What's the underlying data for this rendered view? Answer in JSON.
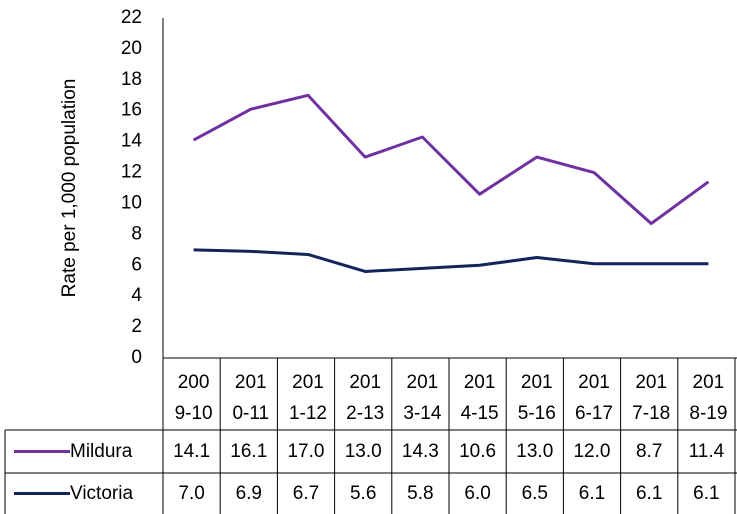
{
  "chart_data": {
    "type": "line",
    "y_label": "Rate per 1,000 population",
    "categories": [
      "2009-10",
      "2010-11",
      "2011-12",
      "2012-13",
      "2013-14",
      "2014-15",
      "2015-16",
      "2016-17",
      "2017-18",
      "2018-19"
    ],
    "series": [
      {
        "name": "Mildura",
        "color": "#7030a0",
        "values": [
          14.1,
          16.1,
          17.0,
          13.0,
          14.3,
          10.6,
          13.0,
          12.0,
          8.7,
          11.4
        ],
        "value_labels": [
          "14.1",
          "16.1",
          "17.0",
          "13.0",
          "14.3",
          "10.6",
          "13.0",
          "12.0",
          "8.7",
          "11.4"
        ]
      },
      {
        "name": "Victoria",
        "color": "#13235b",
        "values": [
          7.0,
          6.9,
          6.7,
          5.6,
          5.8,
          6.0,
          6.5,
          6.1,
          6.1,
          6.1
        ],
        "value_labels": [
          "7.0",
          "6.9",
          "6.7",
          "5.6",
          "5.8",
          "6.0",
          "6.5",
          "6.1",
          "6.1",
          "6.1"
        ]
      }
    ],
    "ylim": [
      0,
      22
    ],
    "yticks": [
      0,
      2,
      4,
      6,
      8,
      10,
      12,
      14,
      16,
      18,
      20,
      22
    ],
    "grid": false
  }
}
